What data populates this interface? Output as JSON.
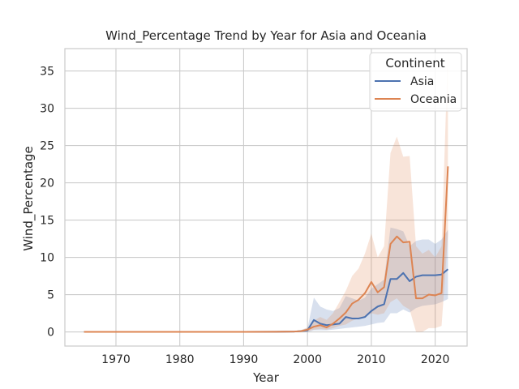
{
  "chart_data": {
    "type": "line",
    "title": "Wind_Percentage Trend by Year for Asia and Oceania",
    "xlabel": "Year",
    "ylabel": "Wind_Percentage",
    "xlim": [
      1962,
      2025
    ],
    "ylim": [
      -1.9,
      38
    ],
    "x_ticks": [
      1970,
      1980,
      1990,
      2000,
      2010,
      2020
    ],
    "y_ticks": [
      0,
      5,
      10,
      15,
      20,
      25,
      30,
      35
    ],
    "grid": true,
    "legend": {
      "title": "Continent",
      "placement": "top-right"
    },
    "series": [
      {
        "name": "Asia",
        "color": "#4c72b0",
        "points": [
          [
            1965,
            0
          ],
          [
            1970,
            0
          ],
          [
            1980,
            0
          ],
          [
            1990,
            0
          ],
          [
            1995,
            0.02
          ],
          [
            1998,
            0.05
          ],
          [
            1999,
            0.1
          ],
          [
            2000,
            0.2
          ],
          [
            2001,
            1.6
          ],
          [
            2002,
            1.1
          ],
          [
            2003,
            0.9
          ],
          [
            2004,
            1.0
          ],
          [
            2005,
            1.1
          ],
          [
            2006,
            2.0
          ],
          [
            2007,
            1.8
          ],
          [
            2008,
            1.8
          ],
          [
            2009,
            2.0
          ],
          [
            2010,
            2.8
          ],
          [
            2011,
            3.4
          ],
          [
            2012,
            3.7
          ],
          [
            2013,
            7.1
          ],
          [
            2014,
            7.1
          ],
          [
            2015,
            7.9
          ],
          [
            2016,
            6.8
          ],
          [
            2017,
            7.4
          ],
          [
            2018,
            7.6
          ],
          [
            2019,
            7.6
          ],
          [
            2020,
            7.6
          ],
          [
            2021,
            7.7
          ],
          [
            2022,
            8.4
          ]
        ],
        "ci_lower": [
          [
            1965,
            0
          ],
          [
            1970,
            0
          ],
          [
            1980,
            0
          ],
          [
            1990,
            0
          ],
          [
            1995,
            0
          ],
          [
            1998,
            0
          ],
          [
            1999,
            0
          ],
          [
            2000,
            0
          ],
          [
            2001,
            0.2
          ],
          [
            2002,
            0.2
          ],
          [
            2003,
            0.2
          ],
          [
            2004,
            0.3
          ],
          [
            2005,
            0.4
          ],
          [
            2006,
            0.5
          ],
          [
            2007,
            0.6
          ],
          [
            2008,
            0.7
          ],
          [
            2009,
            0.8
          ],
          [
            2010,
            1.0
          ],
          [
            2011,
            1.2
          ],
          [
            2012,
            1.3
          ],
          [
            2013,
            2.5
          ],
          [
            2014,
            2.5
          ],
          [
            2015,
            3.0
          ],
          [
            2016,
            2.6
          ],
          [
            2017,
            3.2
          ],
          [
            2018,
            3.5
          ],
          [
            2019,
            3.6
          ],
          [
            2020,
            3.7
          ],
          [
            2021,
            4.0
          ],
          [
            2022,
            4.4
          ]
        ],
        "ci_upper": [
          [
            1965,
            0
          ],
          [
            1970,
            0
          ],
          [
            1980,
            0
          ],
          [
            1990,
            0
          ],
          [
            1995,
            0.05
          ],
          [
            1998,
            0.12
          ],
          [
            1999,
            0.25
          ],
          [
            2000,
            0.5
          ],
          [
            2001,
            4.6
          ],
          [
            2002,
            3.4
          ],
          [
            2003,
            3.0
          ],
          [
            2004,
            2.8
          ],
          [
            2005,
            3.2
          ],
          [
            2006,
            4.8
          ],
          [
            2007,
            4.5
          ],
          [
            2008,
            4.2
          ],
          [
            2009,
            4.6
          ],
          [
            2010,
            5.8
          ],
          [
            2011,
            6.4
          ],
          [
            2012,
            7.0
          ],
          [
            2013,
            14.0
          ],
          [
            2014,
            13.8
          ],
          [
            2015,
            13.5
          ],
          [
            2016,
            11.5
          ],
          [
            2017,
            12.2
          ],
          [
            2018,
            12.4
          ],
          [
            2019,
            12.4
          ],
          [
            2020,
            11.8
          ],
          [
            2021,
            12.4
          ],
          [
            2022,
            13.7
          ]
        ]
      },
      {
        "name": "Oceania",
        "color": "#dd8452",
        "points": [
          [
            1965,
            0
          ],
          [
            1970,
            0
          ],
          [
            1980,
            0
          ],
          [
            1990,
            0
          ],
          [
            1995,
            0.02
          ],
          [
            1998,
            0.05
          ],
          [
            1999,
            0.1
          ],
          [
            2000,
            0.3
          ],
          [
            2001,
            0.7
          ],
          [
            2002,
            0.9
          ],
          [
            2003,
            0.6
          ],
          [
            2004,
            1.1
          ],
          [
            2005,
            1.8
          ],
          [
            2006,
            2.6
          ],
          [
            2007,
            3.8
          ],
          [
            2008,
            4.3
          ],
          [
            2009,
            5.2
          ],
          [
            2010,
            6.7
          ],
          [
            2011,
            5.3
          ],
          [
            2012,
            6.0
          ],
          [
            2013,
            11.8
          ],
          [
            2014,
            12.8
          ],
          [
            2015,
            12.0
          ],
          [
            2016,
            12.1
          ],
          [
            2017,
            4.5
          ],
          [
            2018,
            4.5
          ],
          [
            2019,
            5.0
          ],
          [
            2020,
            4.9
          ],
          [
            2021,
            5.2
          ],
          [
            2022,
            22.2
          ]
        ],
        "ci_lower": [
          [
            1965,
            0
          ],
          [
            1970,
            0
          ],
          [
            1980,
            0
          ],
          [
            1990,
            0
          ],
          [
            1995,
            0
          ],
          [
            1998,
            0
          ],
          [
            1999,
            0
          ],
          [
            2000,
            0.05
          ],
          [
            2001,
            0.3
          ],
          [
            2002,
            0.4
          ],
          [
            2003,
            0.3
          ],
          [
            2004,
            0.5
          ],
          [
            2005,
            0.8
          ],
          [
            2006,
            1.0
          ],
          [
            2007,
            1.5
          ],
          [
            2008,
            1.8
          ],
          [
            2009,
            2.0
          ],
          [
            2010,
            2.5
          ],
          [
            2011,
            2.3
          ],
          [
            2012,
            2.5
          ],
          [
            2013,
            4.0
          ],
          [
            2014,
            4.5
          ],
          [
            2015,
            3.5
          ],
          [
            2016,
            3.0
          ],
          [
            2017,
            0
          ],
          [
            2018,
            0
          ],
          [
            2019,
            0.5
          ],
          [
            2020,
            0.5
          ],
          [
            2021,
            0.8
          ],
          [
            2022,
            13.0
          ]
        ],
        "ci_upper": [
          [
            1965,
            0
          ],
          [
            1970,
            0
          ],
          [
            1980,
            0
          ],
          [
            1990,
            0
          ],
          [
            1995,
            0.05
          ],
          [
            1998,
            0.12
          ],
          [
            1999,
            0.25
          ],
          [
            2000,
            0.6
          ],
          [
            2001,
            1.5
          ],
          [
            2002,
            2.0
          ],
          [
            2003,
            1.6
          ],
          [
            2004,
            2.5
          ],
          [
            2005,
            4.0
          ],
          [
            2006,
            5.5
          ],
          [
            2007,
            7.5
          ],
          [
            2008,
            8.5
          ],
          [
            2009,
            10.5
          ],
          [
            2010,
            13.2
          ],
          [
            2011,
            10.0
          ],
          [
            2012,
            11.5
          ],
          [
            2013,
            24.0
          ],
          [
            2014,
            26.2
          ],
          [
            2015,
            23.5
          ],
          [
            2016,
            23.6
          ],
          [
            2017,
            11.5
          ],
          [
            2018,
            10.5
          ],
          [
            2019,
            11.0
          ],
          [
            2020,
            10.0
          ],
          [
            2021,
            11.5
          ],
          [
            2022,
            38.0
          ]
        ]
      }
    ]
  }
}
